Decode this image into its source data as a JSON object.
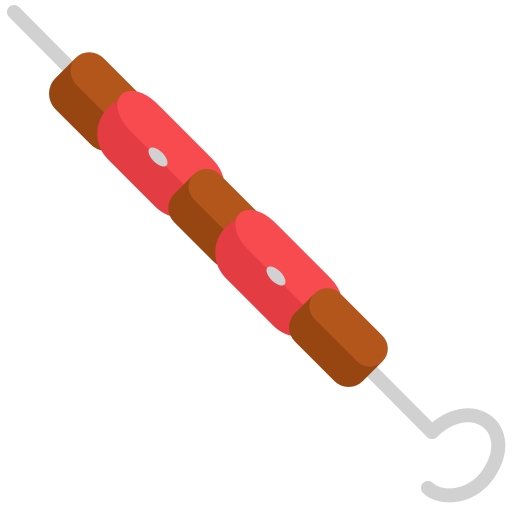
{
  "illustration": {
    "icon": "kebab-skewer-icon",
    "colors": {
      "skewer": "#d1d1d1",
      "meat_light": "#b2561c",
      "meat_dark": "#974612",
      "tomato_light": "#f84b4f",
      "tomato_dark": "#e33d43"
    }
  }
}
